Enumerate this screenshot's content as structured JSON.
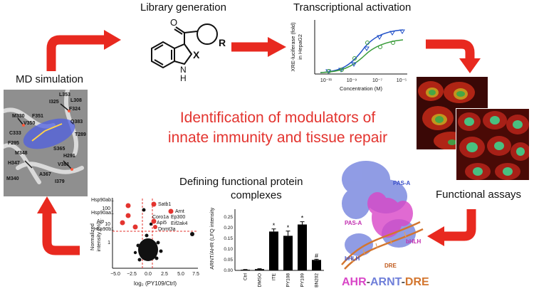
{
  "stages": {
    "library": "Library generation",
    "transcription": "Transcriptional activation",
    "md": "MD simulation",
    "functional": "Functional assays",
    "complexes_line1": "Defining functional protein",
    "complexes_line2": "complexes"
  },
  "center": {
    "line1": "Identification of modulators of",
    "line2": "innate immunity and tissue repair"
  },
  "molecule": {
    "r": "R",
    "x": "X",
    "n": "N",
    "h": "H"
  },
  "residues": [
    "L353",
    "L308",
    "I325",
    "F324",
    "M330",
    "F351",
    "V350",
    "Q383",
    "C333",
    "T289",
    "F295",
    "S365",
    "H291",
    "M348",
    "H347",
    "V381",
    "M340",
    "A367",
    "I379"
  ],
  "dose_chart": {
    "ylabel_1": "XRE-luciferase (fold)",
    "ylabel_2": "in HepaG2",
    "xlabel": "Concentration (M)",
    "xticks": [
      "10⁻¹¹",
      "10⁻⁹",
      "10⁻⁷",
      "10⁻⁵"
    ]
  },
  "volcano": {
    "ylabel_1": "Normalized",
    "ylabel_2": "intensity (%)",
    "xlabel": "log₂ (PY109/Ctrl)",
    "yticks": [
      "100",
      "10",
      "1"
    ],
    "xticks": [
      "−5.0",
      "−2.5",
      "0.0",
      "2.5",
      "5.0",
      "7.5"
    ],
    "labels": [
      "Hsp90ab1",
      "Hsp90aa1",
      "Aip",
      "Hsp90b1",
      "Satb1",
      "Arnt",
      "Coro1a",
      "Ep300",
      "Api5",
      "Eif2ak4",
      "Dnmt3a"
    ]
  },
  "bar_chart_text": {
    "ylabel": "ARNT/AHR (LFQ intensity)",
    "yticks": [
      "0.00",
      "0.05",
      "0.10",
      "0.15",
      "0.20",
      "0.25"
    ],
    "star": "*",
    "hash": "#"
  },
  "chart_data": {
    "type": "bar",
    "categories": [
      "Ctrl",
      "DMSO",
      "ITE",
      "PY108",
      "PY109",
      "BN202"
    ],
    "values": [
      0.003,
      0.006,
      0.182,
      0.162,
      0.215,
      0.049
    ],
    "errors": [
      0.001,
      0.002,
      0.012,
      0.022,
      0.013,
      0.003
    ],
    "annotations": [
      "",
      "",
      "*",
      "*",
      "*",
      "#"
    ],
    "ylabel": "ARNT/AHR (LFQ intensity)",
    "ylim": [
      0,
      0.28
    ]
  },
  "protein": {
    "pas_a_top": "PAS-A",
    "pas_a_left": "PAS-A",
    "bhlh_right": "bHLH",
    "bhlh_left": "bHLH",
    "dre": "DRE",
    "legend_ahr": "AHR",
    "legend_dash1": "-",
    "legend_arnt": "ARNT",
    "legend_dash2": "-",
    "legend_dre": "DRE"
  },
  "colors": {
    "arrow": "#e8291f",
    "title": "#e3342f",
    "ahr": "#d946c7",
    "arnt": "#6f7fd9",
    "dre": "#d3762f"
  }
}
